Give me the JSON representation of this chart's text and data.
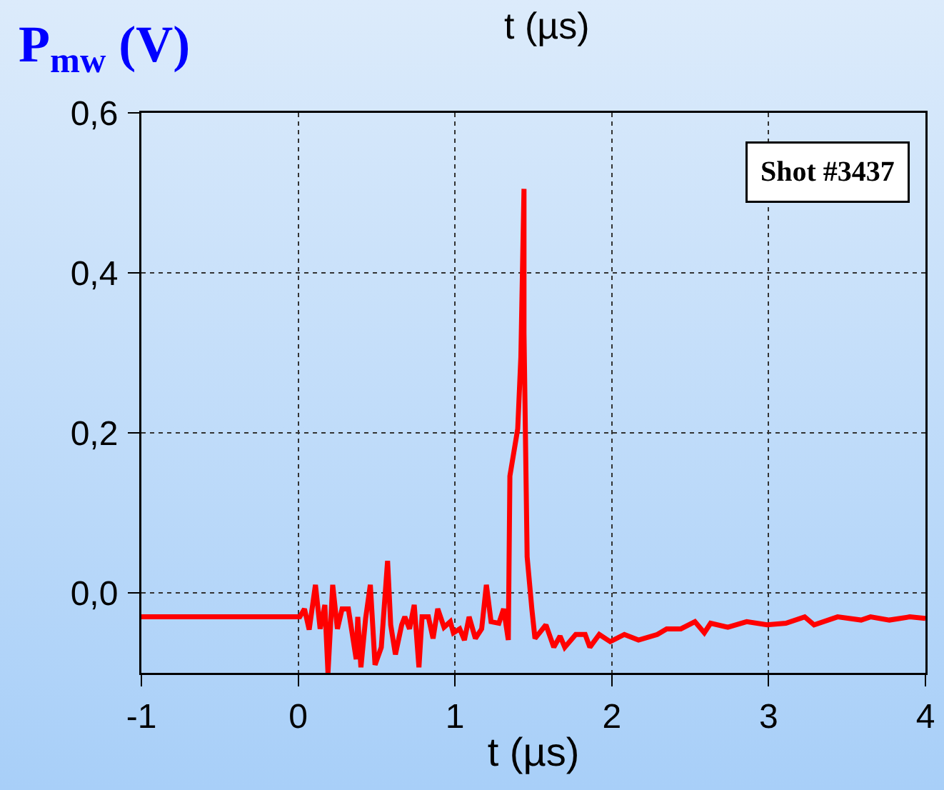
{
  "chart_data": {
    "type": "line",
    "ylabel": "P$_{mw}$ (V)",
    "xlabel": "t (µs)",
    "annotations": [
      "Shot #3437",
      "t (µs)"
    ],
    "x": [
      -1,
      0.01,
      0.04,
      0.07,
      0.11,
      0.14,
      0.17,
      0.19,
      0.22,
      0.25,
      0.28,
      0.32,
      0.37,
      0.38,
      0.4,
      0.43,
      0.46,
      0.49,
      0.53,
      0.57,
      0.59,
      0.62,
      0.66,
      0.68,
      0.71,
      0.74,
      0.77,
      0.79,
      0.83,
      0.86,
      0.89,
      0.93,
      0.97,
      0.99,
      1.03,
      1.06,
      1.09,
      1.13,
      1.17,
      1.2,
      1.23,
      1.28,
      1.31,
      1.34,
      1.35,
      1.4,
      1.42,
      1.44,
      1.44,
      1.46,
      1.49,
      1.51,
      1.58,
      1.63,
      1.67,
      1.7,
      1.77,
      1.83,
      1.86,
      1.92,
      1.99,
      2.08,
      2.17,
      2.29,
      2.35,
      2.44,
      2.53,
      2.59,
      2.63,
      2.74,
      2.86,
      2.99,
      3.11,
      3.23,
      3.29,
      3.44,
      3.59,
      3.65,
      3.77,
      3.9,
      4
    ],
    "series": [
      {
        "color": "#ff0000",
        "values": [
          -0.03,
          -0.03,
          -0.02,
          -0.046,
          0.01,
          -0.045,
          -0.015,
          -0.1,
          0.01,
          -0.045,
          -0.02,
          -0.02,
          -0.083,
          -0.03,
          -0.093,
          -0.032,
          0.01,
          -0.09,
          -0.068,
          0.04,
          -0.04,
          -0.077,
          -0.04,
          -0.03,
          -0.045,
          -0.015,
          -0.093,
          -0.03,
          -0.03,
          -0.057,
          -0.02,
          -0.043,
          -0.036,
          -0.05,
          -0.045,
          -0.059,
          -0.03,
          -0.057,
          -0.045,
          0.01,
          -0.036,
          -0.038,
          -0.02,
          -0.059,
          0.146,
          0.205,
          0.295,
          0.505,
          0.325,
          0.045,
          -0.02,
          -0.057,
          -0.04,
          -0.068,
          -0.054,
          -0.068,
          -0.052,
          -0.052,
          -0.068,
          -0.052,
          -0.061,
          -0.052,
          -0.059,
          -0.052,
          -0.045,
          -0.045,
          -0.036,
          -0.05,
          -0.038,
          -0.043,
          -0.036,
          -0.04,
          -0.038,
          -0.03,
          -0.04,
          -0.03,
          -0.034,
          -0.03,
          -0.034,
          -0.03,
          -0.032
        ]
      }
    ],
    "xlim": [
      -1,
      4
    ],
    "xticks": [
      -1,
      0,
      1,
      2,
      3,
      4
    ],
    "ylim": [
      -0.1,
      0.6
    ],
    "yticks": [
      {
        "value": 0,
        "label": "0,0"
      },
      {
        "value": 0.2,
        "label": "0,2"
      },
      {
        "value": 0.4,
        "label": "0,4"
      },
      {
        "value": 0.6,
        "label": "0,6"
      }
    ],
    "grid": true,
    "marker": "none",
    "line_style": "solid"
  }
}
